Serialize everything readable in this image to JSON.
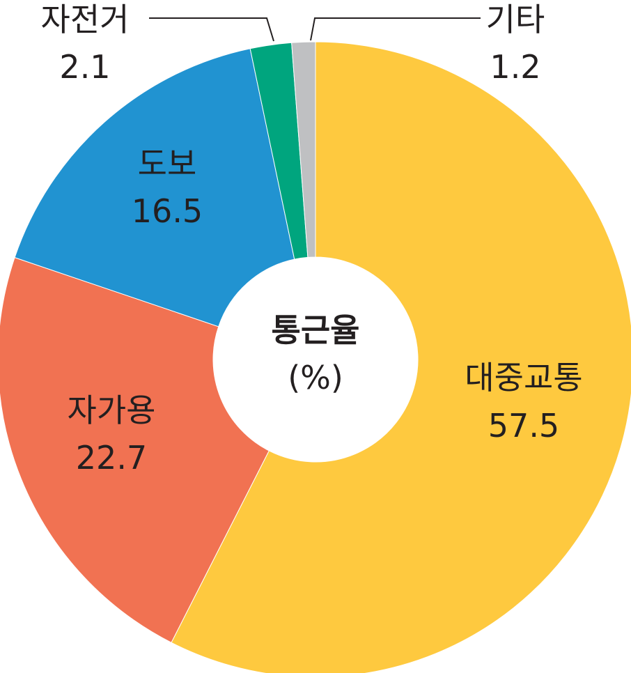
{
  "chart_data": {
    "type": "pie",
    "title": "통근율",
    "unit": "(%)",
    "slices": [
      {
        "label": "대중교통",
        "value": 57.5,
        "value_label": "57.5",
        "color": "#fec93f"
      },
      {
        "label": "자가용",
        "value": 22.7,
        "value_label": "22.7",
        "color": "#f17252"
      },
      {
        "label": "도보",
        "value": 16.5,
        "value_label": "16.5",
        "color": "#2193d1"
      },
      {
        "label": "자전거",
        "value": 2.1,
        "value_label": "2.1",
        "color": "#00a57e"
      },
      {
        "label": "기타",
        "value": 1.2,
        "value_label": "1.2",
        "color": "#bfc0c2"
      }
    ]
  }
}
